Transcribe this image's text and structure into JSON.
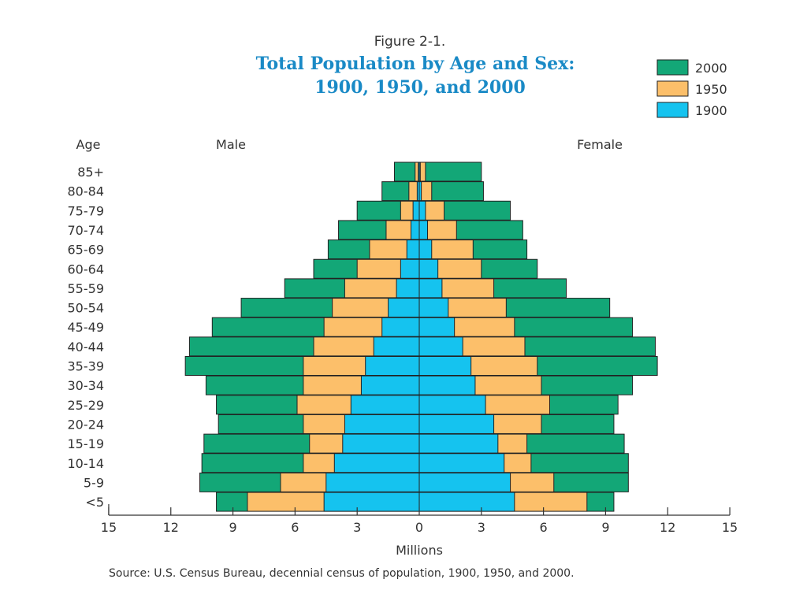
{
  "figure_label": "Figure 2-1.",
  "title_line1": "Total Population by Age and Sex:",
  "title_line2": "1900, 1950, and 2000",
  "source": "Source:  U.S. Census Bureau, decennial census of population, 1900, 1950, and 2000.",
  "colors": {
    "y2000": "#13a777",
    "y1950": "#fcbf6a",
    "y1900": "#15c3ef",
    "title": "#1a8ac6",
    "axis": "#333333"
  },
  "chart_data": {
    "type": "bar",
    "orientation": "horizontal",
    "layout": "population-pyramid",
    "ylabel": "Age",
    "xlabel": "Millions",
    "left_label": "Male",
    "right_label": "Female",
    "xlim": [
      -15,
      15
    ],
    "xticks": [
      -15,
      -12,
      -9,
      -6,
      -3,
      0,
      3,
      6,
      9,
      12,
      15
    ],
    "xtick_labels": [
      "15",
      "12",
      "9",
      "6",
      "3",
      "0",
      "3",
      "6",
      "9",
      "12",
      "15"
    ],
    "categories": [
      "85+",
      "80-84",
      "75-79",
      "70-74",
      "65-69",
      "60-64",
      "55-59",
      "50-54",
      "45-49",
      "40-44",
      "35-39",
      "30-34",
      "25-29",
      "20-24",
      "15-19",
      "10-14",
      "5-9",
      "<5"
    ],
    "legend_position": "top-right",
    "legend_order": [
      "2000",
      "1950",
      "1900"
    ],
    "series": [
      {
        "name": "2000",
        "color": "#13a777",
        "male": [
          1.2,
          1.8,
          3.0,
          3.9,
          4.4,
          5.1,
          6.5,
          8.6,
          10.0,
          11.1,
          11.3,
          10.3,
          9.8,
          9.7,
          10.4,
          10.5,
          10.6,
          9.8
        ],
        "female": [
          3.0,
          3.1,
          4.4,
          5.0,
          5.2,
          5.7,
          7.1,
          9.2,
          10.3,
          11.4,
          11.5,
          10.3,
          9.6,
          9.4,
          9.9,
          10.1,
          10.1,
          9.4
        ]
      },
      {
        "name": "1950",
        "color": "#fcbf6a",
        "male": [
          0.2,
          0.5,
          0.9,
          1.6,
          2.4,
          3.0,
          3.6,
          4.2,
          4.6,
          5.1,
          5.6,
          5.6,
          5.9,
          5.6,
          5.3,
          5.6,
          6.7,
          8.3
        ],
        "female": [
          0.3,
          0.6,
          1.2,
          1.8,
          2.6,
          3.0,
          3.6,
          4.2,
          4.6,
          5.1,
          5.7,
          5.9,
          6.3,
          5.9,
          5.2,
          5.4,
          6.5,
          8.1
        ]
      },
      {
        "name": "1900",
        "color": "#15c3ef",
        "male": [
          0.05,
          0.1,
          0.3,
          0.4,
          0.6,
          0.9,
          1.1,
          1.5,
          1.8,
          2.2,
          2.6,
          2.8,
          3.3,
          3.6,
          3.7,
          4.1,
          4.5,
          4.6
        ],
        "female": [
          0.05,
          0.1,
          0.3,
          0.4,
          0.6,
          0.9,
          1.1,
          1.4,
          1.7,
          2.1,
          2.5,
          2.7,
          3.2,
          3.6,
          3.8,
          4.1,
          4.4,
          4.6
        ]
      }
    ]
  }
}
